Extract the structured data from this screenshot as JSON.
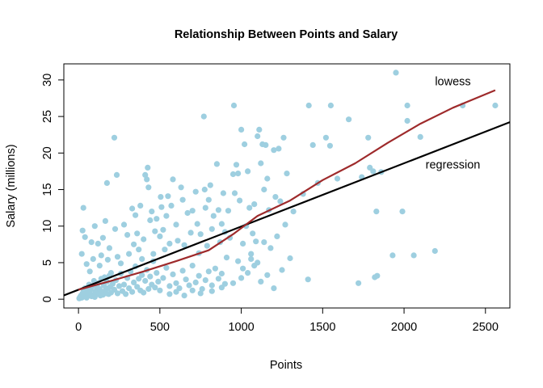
{
  "chart_data": {
    "type": "scatter",
    "title": "Relationship Between Points and Salary",
    "xlabel": "Points",
    "ylabel": "Salary (millions)",
    "xlim": [
      -90,
      2650
    ],
    "ylim": [
      -1.2,
      32.2
    ],
    "xticks": [
      0,
      500,
      1000,
      1500,
      2000,
      2500
    ],
    "yticks": [
      0,
      5,
      10,
      15,
      20,
      25,
      30
    ],
    "grid": false,
    "colors": {
      "points": "#9ecfe0",
      "regression": "#000000",
      "lowess": "#9e2a2b"
    },
    "annotations": [
      {
        "text": "lowess",
        "x": 2300,
        "y": 29.7
      },
      {
        "text": "regression",
        "x": 2300,
        "y": 18.3
      }
    ],
    "regression": {
      "intercept": 1.3,
      "slope": 0.00865
    },
    "lowess": [
      [
        0,
        1.3
      ],
      [
        200,
        2.5
      ],
      [
        400,
        3.8
      ],
      [
        600,
        5.2
      ],
      [
        800,
        6.7
      ],
      [
        950,
        8.9
      ],
      [
        1100,
        11.4
      ],
      [
        1300,
        13.5
      ],
      [
        1500,
        16.3
      ],
      [
        1700,
        18.6
      ],
      [
        1900,
        21.4
      ],
      [
        2100,
        24.0
      ],
      [
        2300,
        26.2
      ],
      [
        2560,
        28.6
      ]
    ],
    "points": [
      [
        5,
        0.1
      ],
      [
        10,
        0.3
      ],
      [
        15,
        0.5
      ],
      [
        20,
        0.2
      ],
      [
        25,
        0.8
      ],
      [
        30,
        1.0
      ],
      [
        35,
        0.4
      ],
      [
        40,
        1.5
      ],
      [
        45,
        0.6
      ],
      [
        50,
        0.2
      ],
      [
        55,
        1.2
      ],
      [
        60,
        0.5
      ],
      [
        65,
        2.0
      ],
      [
        70,
        0.8
      ],
      [
        75,
        1.3
      ],
      [
        80,
        0.4
      ],
      [
        85,
        1.8
      ],
      [
        90,
        0.6
      ],
      [
        95,
        2.5
      ],
      [
        100,
        0.3
      ],
      [
        105,
        1.1
      ],
      [
        110,
        0.7
      ],
      [
        115,
        1.6
      ],
      [
        120,
        2.2
      ],
      [
        125,
        0.9
      ],
      [
        130,
        1.4
      ],
      [
        135,
        0.5
      ],
      [
        140,
        2.8
      ],
      [
        145,
        1.0
      ],
      [
        150,
        0.6
      ],
      [
        155,
        1.9
      ],
      [
        160,
        3.0
      ],
      [
        165,
        1.2
      ],
      [
        170,
        0.8
      ],
      [
        175,
        2.4
      ],
      [
        180,
        1.5
      ],
      [
        185,
        0.7
      ],
      [
        190,
        3.2
      ],
      [
        195,
        1.7
      ],
      [
        200,
        0.9
      ],
      [
        210,
        2.1
      ],
      [
        220,
        1.3
      ],
      [
        230,
        2.6
      ],
      [
        240,
        0.8
      ],
      [
        250,
        1.8
      ],
      [
        260,
        3.5
      ],
      [
        270,
        1.1
      ],
      [
        280,
        2.0
      ],
      [
        290,
        0.7
      ],
      [
        300,
        2.9
      ],
      [
        310,
        1.5
      ],
      [
        320,
        3.8
      ],
      [
        330,
        1.0
      ],
      [
        340,
        2.3
      ],
      [
        350,
        4.5
      ],
      [
        360,
        1.7
      ],
      [
        370,
        2.8
      ],
      [
        380,
        1.2
      ],
      [
        390,
        3.3
      ],
      [
        400,
        0.9
      ],
      [
        410,
        2.5
      ],
      [
        420,
        4.0
      ],
      [
        430,
        1.4
      ],
      [
        440,
        3.1
      ],
      [
        450,
        2.0
      ],
      [
        460,
        5.2
      ],
      [
        470,
        1.6
      ],
      [
        480,
        3.6
      ],
      [
        490,
        2.4
      ],
      [
        500,
        1.2
      ],
      [
        520,
        2.9
      ],
      [
        540,
        4.3
      ],
      [
        560,
        1.8
      ],
      [
        580,
        3.4
      ],
      [
        600,
        2.2
      ],
      [
        620,
        1.5
      ],
      [
        640,
        3.9
      ],
      [
        660,
        2.7
      ],
      [
        680,
        1.9
      ],
      [
        700,
        4.6
      ],
      [
        720,
        2.3
      ],
      [
        740,
        3.2
      ],
      [
        760,
        1.4
      ],
      [
        780,
        2.6
      ],
      [
        800,
        3.8
      ],
      [
        820,
        1.9
      ],
      [
        840,
        4.2
      ],
      [
        860,
        2.8
      ],
      [
        880,
        3.5
      ],
      [
        900,
        2.1
      ],
      [
        20,
        6.2
      ],
      [
        25,
        9.4
      ],
      [
        30,
        12.5
      ],
      [
        40,
        8.5
      ],
      [
        50,
        4.8
      ],
      [
        70,
        3.8
      ],
      [
        80,
        7.8
      ],
      [
        90,
        5.5
      ],
      [
        100,
        10.0
      ],
      [
        120,
        7.6
      ],
      [
        130,
        4.6
      ],
      [
        140,
        6.0
      ],
      [
        150,
        8.4
      ],
      [
        165,
        10.7
      ],
      [
        175,
        15.9
      ],
      [
        180,
        5.4
      ],
      [
        190,
        7.0
      ],
      [
        200,
        3.6
      ],
      [
        220,
        22.1
      ],
      [
        225,
        9.6
      ],
      [
        235,
        17.0
      ],
      [
        240,
        5.8
      ],
      [
        260,
        4.9
      ],
      [
        280,
        10.2
      ],
      [
        300,
        8.8
      ],
      [
        310,
        6.2
      ],
      [
        330,
        12.4
      ],
      [
        340,
        7.5
      ],
      [
        350,
        11.5
      ],
      [
        360,
        9.0
      ],
      [
        370,
        6.8
      ],
      [
        380,
        12.8
      ],
      [
        390,
        5.5
      ],
      [
        400,
        8.2
      ],
      [
        410,
        17.0
      ],
      [
        420,
        16.4
      ],
      [
        425,
        18.0
      ],
      [
        430,
        15.3
      ],
      [
        440,
        10.8
      ],
      [
        450,
        12.0
      ],
      [
        460,
        6.2
      ],
      [
        470,
        9.3
      ],
      [
        480,
        11.0
      ],
      [
        500,
        8.6
      ],
      [
        505,
        14.0
      ],
      [
        510,
        12.6
      ],
      [
        520,
        9.5
      ],
      [
        530,
        6.8
      ],
      [
        540,
        11.4
      ],
      [
        550,
        14.1
      ],
      [
        560,
        7.6
      ],
      [
        570,
        12.8
      ],
      [
        580,
        16.4
      ],
      [
        600,
        10.2
      ],
      [
        610,
        8.0
      ],
      [
        630,
        15.3
      ],
      [
        640,
        13.6
      ],
      [
        650,
        7.4
      ],
      [
        670,
        11.8
      ],
      [
        690,
        9.1
      ],
      [
        700,
        12.1
      ],
      [
        720,
        14.7
      ],
      [
        730,
        10.3
      ],
      [
        740,
        6.3
      ],
      [
        750,
        8.9
      ],
      [
        770,
        25.0
      ],
      [
        775,
        15.0
      ],
      [
        780,
        12.5
      ],
      [
        790,
        7.3
      ],
      [
        800,
        13.6
      ],
      [
        810,
        15.6
      ],
      [
        820,
        9.6
      ],
      [
        830,
        11.4
      ],
      [
        850,
        18.5
      ],
      [
        860,
        12.2
      ],
      [
        870,
        7.8
      ],
      [
        880,
        10.3
      ],
      [
        890,
        14.5
      ],
      [
        900,
        9.2
      ],
      [
        910,
        5.7
      ],
      [
        920,
        12.1
      ],
      [
        930,
        8.4
      ],
      [
        950,
        17.1
      ],
      [
        955,
        26.5
      ],
      [
        960,
        14.5
      ],
      [
        970,
        18.4
      ],
      [
        980,
        17.2
      ],
      [
        990,
        13.5
      ],
      [
        1000,
        23.2
      ],
      [
        1010,
        7.6
      ],
      [
        1020,
        21.2
      ],
      [
        1030,
        10.0
      ],
      [
        1040,
        17.5
      ],
      [
        1050,
        12.5
      ],
      [
        1060,
        5.5
      ],
      [
        1070,
        9.0
      ],
      [
        1080,
        13.0
      ],
      [
        1090,
        7.9
      ],
      [
        1100,
        22.3
      ],
      [
        1110,
        23.2
      ],
      [
        1120,
        18.6
      ],
      [
        1130,
        21.2
      ],
      [
        1140,
        15.0
      ],
      [
        1150,
        21.1
      ],
      [
        1160,
        16.5
      ],
      [
        1170,
        12.2
      ],
      [
        1180,
        7.0
      ],
      [
        1200,
        20.4
      ],
      [
        1210,
        14.0
      ],
      [
        1220,
        8.6
      ],
      [
        1230,
        20.6
      ],
      [
        1240,
        13.4
      ],
      [
        1260,
        22.1
      ],
      [
        1270,
        10.2
      ],
      [
        1280,
        17.2
      ],
      [
        1300,
        5.6
      ],
      [
        1320,
        12.0
      ],
      [
        1380,
        14.4
      ],
      [
        1410,
        2.7
      ],
      [
        1415,
        26.5
      ],
      [
        1440,
        21.1
      ],
      [
        1470,
        15.9
      ],
      [
        1520,
        22.1
      ],
      [
        1545,
        21.0
      ],
      [
        1550,
        26.5
      ],
      [
        1590,
        16.5
      ],
      [
        1660,
        24.6
      ],
      [
        1720,
        2.2
      ],
      [
        1740,
        16.7
      ],
      [
        1780,
        22.1
      ],
      [
        1790,
        18.0
      ],
      [
        1810,
        17.5
      ],
      [
        1820,
        3.0
      ],
      [
        1830,
        12.0
      ],
      [
        1835,
        3.2
      ],
      [
        1860,
        17.4
      ],
      [
        1930,
        6.0
      ],
      [
        1950,
        31.0
      ],
      [
        1990,
        12.0
      ],
      [
        2020,
        26.5
      ],
      [
        2020,
        24.4
      ],
      [
        2060,
        6.0
      ],
      [
        2100,
        22.2
      ],
      [
        2190,
        6.6
      ],
      [
        2360,
        26.5
      ],
      [
        2560,
        26.5
      ],
      [
        560,
        0.7
      ],
      [
        600,
        1.0
      ],
      [
        650,
        0.5
      ],
      [
        700,
        1.2
      ],
      [
        750,
        0.8
      ],
      [
        820,
        1.1
      ],
      [
        880,
        1.6
      ],
      [
        950,
        2.2
      ],
      [
        1000,
        2.9
      ],
      [
        1040,
        3.6
      ],
      [
        1080,
        4.6
      ],
      [
        1120,
        2.4
      ],
      [
        1160,
        3.3
      ],
      [
        1200,
        1.5
      ],
      [
        1250,
        4.0
      ],
      [
        980,
        5.2
      ],
      [
        1010,
        4.2
      ],
      [
        1060,
        6.2
      ],
      [
        1100,
        5.0
      ],
      [
        1140,
        7.8
      ]
    ]
  }
}
